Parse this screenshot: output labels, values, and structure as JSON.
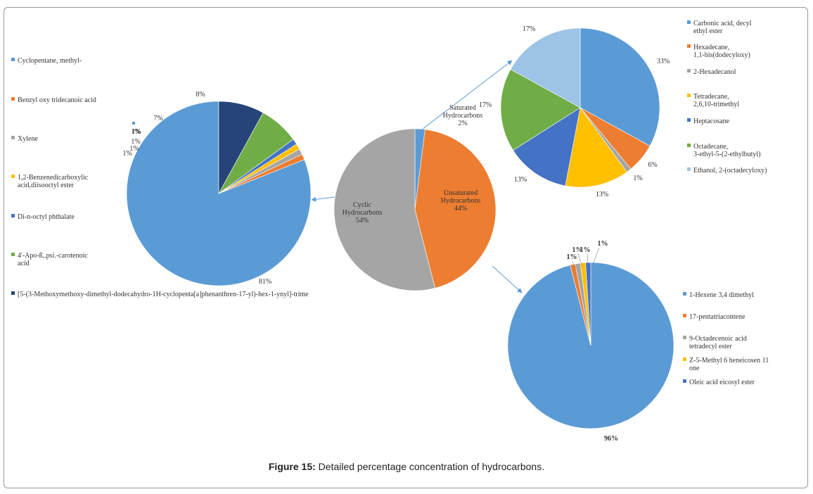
{
  "caption": {
    "label": "Figure 15:",
    "text": " Detailed percentage concentration of hydrocarbons."
  },
  "chart_data": [
    {
      "type": "pie",
      "id": "main",
      "slices": [
        {
          "name": [
            "Saturated",
            "Hydrocarbons"
          ],
          "value": 2,
          "label": "2%",
          "color": "#5B9BD5"
        },
        {
          "name": [
            "Unsaturated",
            "Hydrocarbons"
          ],
          "value": 44,
          "label": "44%",
          "color": "#ED7D31"
        },
        {
          "name": [
            "Cyclic",
            "Hydrocarbons"
          ],
          "value": 54,
          "label": "54%",
          "color": "#A5A5A5"
        }
      ]
    },
    {
      "type": "pie",
      "id": "cyclic",
      "legend_position": "left",
      "slices": [
        {
          "name": "Cyclopentane, methyl-",
          "value": 81,
          "label": "81%",
          "color": "#5B9BD5"
        },
        {
          "name": "Benzyl oxy tridecanoic acid",
          "value": 1,
          "label": "1%",
          "color": "#ED7D31"
        },
        {
          "name": "Xylene",
          "value": 1,
          "label": "1%",
          "color": "#A5A5A5"
        },
        {
          "name": "1,2-Benzenedicarboxylic acid,diisooctyl ester",
          "value": 1,
          "label": "1%",
          "color": "#FFC000"
        },
        {
          "name": "Di-n-octyl phthalate",
          "value": 1,
          "label": "1%",
          "color": "#4472C4"
        },
        {
          "name": "4'-Apo-ß,.psi.-carotenoic acid",
          "value": 7,
          "label": "7%",
          "color": "#70AD47"
        },
        {
          "name": "[5-(3-Methoxymethoxy-dimethyl-dodecahydro-1H-cyclopenta[a]phenanthren-17-yl)-hex-1-ynyl]-trime",
          "value": 8,
          "label": "8%",
          "color": "#264478"
        }
      ],
      "extra_labels": [
        "1%"
      ]
    },
    {
      "type": "pie",
      "id": "saturated",
      "legend_position": "right",
      "slices": [
        {
          "name": "Carbonic acid, decyl ethyl ester",
          "value": 33,
          "label": "33%",
          "color": "#5B9BD5"
        },
        {
          "name": "Hexadecane, 1,1-bis(dodecyloxy)",
          "value": 6,
          "label": "6%",
          "color": "#ED7D31"
        },
        {
          "name": "2-Hexadecanol",
          "value": 1,
          "label": "1%",
          "color": "#A5A5A5"
        },
        {
          "name": "Tetradecane, 2,6,10-trimethyl",
          "value": 13,
          "label": "13%",
          "color": "#FFC000"
        },
        {
          "name": "Heptacosane",
          "value": 13,
          "label": "13%",
          "color": "#4472C4"
        },
        {
          "name": "Octadecane, 3-ethyl-5-(2-ethylbutyl)",
          "value": 17,
          "label": "17%",
          "color": "#70AD47"
        },
        {
          "name": "Ethanol, 2-(octadecyloxy)",
          "value": 17,
          "label": "17%",
          "color": "#9DC3E6"
        }
      ]
    },
    {
      "type": "pie",
      "id": "unsaturated",
      "legend_position": "right",
      "slices": [
        {
          "name": "1-Hexene 3,4 dimethyl",
          "value": 96,
          "label": "96%",
          "color": "#5B9BD5"
        },
        {
          "name": "17-pentatriacontene",
          "value": 1,
          "label": "1%",
          "color": "#ED7D31"
        },
        {
          "name": "9-Octadecenoic acid tetradecyl ester",
          "value": 1,
          "label": "1%",
          "color": "#A5A5A5"
        },
        {
          "name": "Z-5-Methyl 6 heneicosen 11 one",
          "value": 1,
          "label": "1%",
          "color": "#FFC000"
        },
        {
          "name": "Oleic acid eicosyl ester",
          "value": 1,
          "label": "1%",
          "color": "#4472C4"
        }
      ]
    }
  ]
}
